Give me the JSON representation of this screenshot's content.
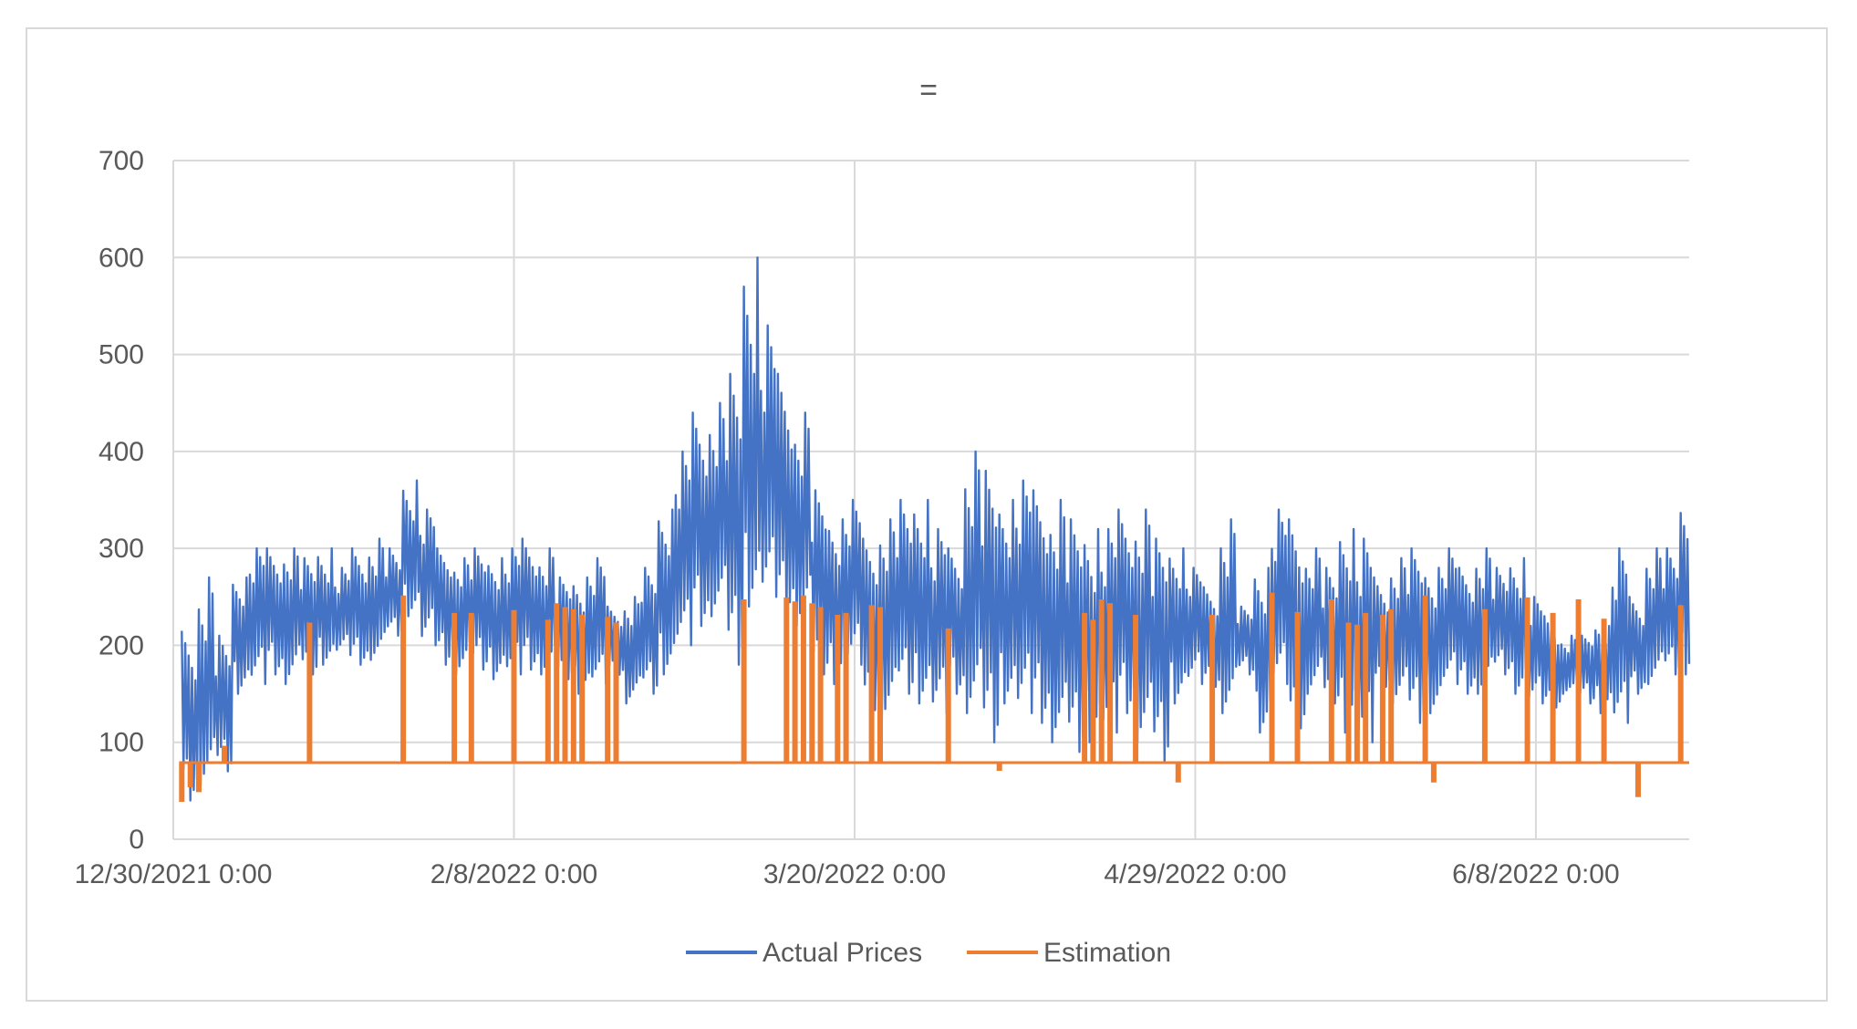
{
  "chart_data": {
    "type": "line",
    "title": "=",
    "xlabel": "",
    "ylabel": "",
    "ylim": [
      0,
      700
    ],
    "yticks": [
      0,
      100,
      200,
      300,
      400,
      500,
      600,
      700
    ],
    "x_range": [
      "2021-12-30",
      "2022-06-26"
    ],
    "xtick_dates": [
      "2021-12-30",
      "2022-02-08",
      "2022-03-20",
      "2022-04-29",
      "2022-06-08"
    ],
    "xtick_labels": [
      "12/30/2021 0:00",
      "2/8/2022 0:00",
      "3/20/2022 0:00",
      "4/29/2022 0:00",
      "6/8/2022 0:00"
    ],
    "grid": true,
    "legend": "bottom",
    "series": [
      {
        "name": "Actual Prices",
        "color": "#4472c4",
        "x": [
          "2021-12-31",
          "2022-01-02",
          "2022-01-04",
          "2022-01-06",
          "2022-01-08",
          "2022-01-10",
          "2022-01-12",
          "2022-01-14",
          "2022-01-16",
          "2022-01-18",
          "2022-01-20",
          "2022-01-22",
          "2022-01-24",
          "2022-01-26",
          "2022-01-28",
          "2022-01-30",
          "2022-02-01",
          "2022-02-03",
          "2022-02-05",
          "2022-02-07",
          "2022-02-09",
          "2022-02-11",
          "2022-02-13",
          "2022-02-15",
          "2022-02-17",
          "2022-02-19",
          "2022-02-21",
          "2022-02-23",
          "2022-02-25",
          "2022-02-27",
          "2022-03-01",
          "2022-03-03",
          "2022-03-05",
          "2022-03-07",
          "2022-03-09",
          "2022-03-11",
          "2022-03-13",
          "2022-03-15",
          "2022-03-17",
          "2022-03-19",
          "2022-03-21",
          "2022-03-23",
          "2022-03-25",
          "2022-03-27",
          "2022-03-29",
          "2022-03-31",
          "2022-04-02",
          "2022-04-04",
          "2022-04-06",
          "2022-04-08",
          "2022-04-10",
          "2022-04-12",
          "2022-04-14",
          "2022-04-16",
          "2022-04-18",
          "2022-04-20",
          "2022-04-22",
          "2022-04-24",
          "2022-04-26",
          "2022-04-28",
          "2022-04-30",
          "2022-05-02",
          "2022-05-04",
          "2022-05-06",
          "2022-05-08",
          "2022-05-10",
          "2022-05-12",
          "2022-05-14",
          "2022-05-16",
          "2022-05-18",
          "2022-05-20",
          "2022-05-22",
          "2022-05-24",
          "2022-05-26",
          "2022-05-28",
          "2022-05-30",
          "2022-06-01",
          "2022-06-03",
          "2022-06-05",
          "2022-06-07",
          "2022-06-09",
          "2022-06-11",
          "2022-06-13",
          "2022-06-15",
          "2022-06-17",
          "2022-06-19",
          "2022-06-21",
          "2022-06-23",
          "2022-06-25"
        ],
        "lo": [
          40,
          55,
          70,
          150,
          160,
          170,
          160,
          170,
          180,
          190,
          180,
          185,
          210,
          230,
          200,
          180,
          170,
          175,
          165,
          170,
          175,
          170,
          165,
          150,
          160,
          165,
          140,
          150,
          170,
          200,
          220,
          230,
          180,
          240,
          250,
          230,
          220,
          170,
          160,
          180,
          120,
          120,
          150,
          140,
          130,
          150,
          130,
          100,
          140,
          130,
          120,
          100,
          90,
          100,
          110,
          130,
          100,
          80,
          140,
          160,
          150,
          130,
          170,
          110,
          160,
          100,
          150,
          140,
          110,
          100,
          150,
          140,
          120,
          130,
          160,
          150,
          150,
          170,
          150,
          140,
          130,
          150,
          140,
          130,
          120,
          150,
          160,
          170,
          170
        ],
        "hi": [
          215,
          270,
          210,
          270,
          300,
          300,
          300,
          290,
          300,
          280,
          300,
          310,
          300,
          370,
          340,
          300,
          290,
          300,
          290,
          300,
          310,
          300,
          270,
          270,
          290,
          240,
          250,
          280,
          340,
          400,
          440,
          450,
          480,
          600,
          530,
          480,
          440,
          360,
          330,
          350,
          310,
          330,
          350,
          350,
          320,
          300,
          400,
          380,
          350,
          370,
          360,
          350,
          330,
          320,
          320,
          340,
          340,
          310,
          300,
          280,
          260,
          330,
          240,
          280,
          340,
          330,
          300,
          280,
          320,
          310,
          270,
          290,
          300,
          280,
          300,
          280,
          300,
          280,
          290,
          250,
          230,
          210,
          210,
          220,
          300,
          250,
          300,
          300,
          350
        ],
        "avg": [
          130,
          160,
          140,
          220,
          240,
          240,
          245,
          235,
          240,
          235,
          240,
          245,
          250,
          300,
          280,
          250,
          240,
          245,
          235,
          240,
          245,
          235,
          220,
          210,
          225,
          205,
          200,
          220,
          260,
          300,
          330,
          340,
          330,
          400,
          380,
          350,
          330,
          270,
          250,
          270,
          230,
          240,
          250,
          250,
          230,
          230,
          270,
          250,
          250,
          260,
          250,
          230,
          220,
          210,
          220,
          240,
          230,
          210,
          230,
          230,
          210,
          230,
          210,
          200,
          250,
          220,
          230,
          210,
          230,
          210,
          210,
          220,
          220,
          210,
          230,
          220,
          230,
          225,
          220,
          200,
          180,
          180,
          185,
          190,
          210,
          200,
          230,
          230,
          260
        ]
      },
      {
        "name": "Estimation",
        "color": "#ed7d31",
        "baseline": 79,
        "spikes": [
          {
            "x": "2021-12-31",
            "y": 40
          },
          {
            "x": "2022-01-01",
            "y": 55
          },
          {
            "x": "2022-01-02",
            "y": 50
          },
          {
            "x": "2022-01-05",
            "y": 95
          },
          {
            "x": "2022-01-15",
            "y": 222
          },
          {
            "x": "2022-01-26",
            "y": 250
          },
          {
            "x": "2022-02-01",
            "y": 232
          },
          {
            "x": "2022-02-03",
            "y": 232
          },
          {
            "x": "2022-02-08",
            "y": 235
          },
          {
            "x": "2022-02-12",
            "y": 225
          },
          {
            "x": "2022-02-13",
            "y": 242
          },
          {
            "x": "2022-02-14",
            "y": 238
          },
          {
            "x": "2022-02-15",
            "y": 236
          },
          {
            "x": "2022-02-16",
            "y": 230
          },
          {
            "x": "2022-02-19",
            "y": 228
          },
          {
            "x": "2022-02-20",
            "y": 222
          },
          {
            "x": "2022-03-07",
            "y": 246
          },
          {
            "x": "2022-03-12",
            "y": 248
          },
          {
            "x": "2022-03-13",
            "y": 244
          },
          {
            "x": "2022-03-14",
            "y": 250
          },
          {
            "x": "2022-03-15",
            "y": 242
          },
          {
            "x": "2022-03-16",
            "y": 238
          },
          {
            "x": "2022-03-18",
            "y": 230
          },
          {
            "x": "2022-03-19",
            "y": 232
          },
          {
            "x": "2022-03-22",
            "y": 240
          },
          {
            "x": "2022-03-23",
            "y": 238
          },
          {
            "x": "2022-03-31",
            "y": 216
          },
          {
            "x": "2022-04-06",
            "y": 72
          },
          {
            "x": "2022-04-16",
            "y": 232
          },
          {
            "x": "2022-04-17",
            "y": 225
          },
          {
            "x": "2022-04-18",
            "y": 246
          },
          {
            "x": "2022-04-19",
            "y": 242
          },
          {
            "x": "2022-04-22",
            "y": 230
          },
          {
            "x": "2022-04-27",
            "y": 60
          },
          {
            "x": "2022-05-01",
            "y": 230
          },
          {
            "x": "2022-05-08",
            "y": 253
          },
          {
            "x": "2022-05-11",
            "y": 233
          },
          {
            "x": "2022-05-15",
            "y": 246
          },
          {
            "x": "2022-05-17",
            "y": 222
          },
          {
            "x": "2022-05-18",
            "y": 220
          },
          {
            "x": "2022-05-19",
            "y": 232
          },
          {
            "x": "2022-05-21",
            "y": 230
          },
          {
            "x": "2022-05-22",
            "y": 236
          },
          {
            "x": "2022-05-26",
            "y": 250
          },
          {
            "x": "2022-05-27",
            "y": 60
          },
          {
            "x": "2022-06-02",
            "y": 236
          },
          {
            "x": "2022-06-07",
            "y": 248
          },
          {
            "x": "2022-06-10",
            "y": 232
          },
          {
            "x": "2022-06-13",
            "y": 246
          },
          {
            "x": "2022-06-16",
            "y": 226
          },
          {
            "x": "2022-06-20",
            "y": 45
          },
          {
            "x": "2022-06-25",
            "y": 240
          }
        ]
      }
    ]
  }
}
